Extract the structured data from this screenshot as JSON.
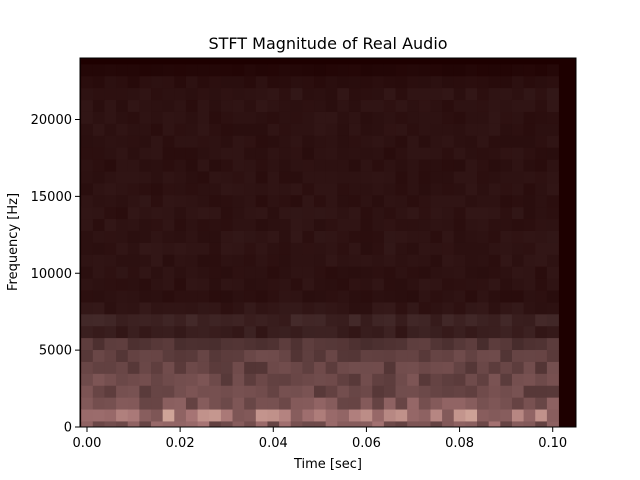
{
  "chart_data": {
    "type": "heatmap",
    "title": "STFT Magnitude of Real Audio",
    "xlabel": "Time [sec]",
    "ylabel": "Frequency [Hz]",
    "xlim": [
      -0.0015,
      0.105
    ],
    "ylim": [
      0,
      24000
    ],
    "xticks": [
      {
        "value": 0.0,
        "label": "0.00"
      },
      {
        "value": 0.02,
        "label": "0.02"
      },
      {
        "value": 0.04,
        "label": "0.04"
      },
      {
        "value": 0.06,
        "label": "0.06"
      },
      {
        "value": 0.08,
        "label": "0.08"
      },
      {
        "value": 0.1,
        "label": "0.10"
      }
    ],
    "yticks": [
      {
        "value": 0,
        "label": "0"
      },
      {
        "value": 5000,
        "label": "5000"
      },
      {
        "value": 10000,
        "label": "10000"
      },
      {
        "value": 15000,
        "label": "15000"
      },
      {
        "value": 20000,
        "label": "20000"
      }
    ],
    "colormap": "pink",
    "background_color": "#1e0000",
    "grid": false,
    "legend": "none",
    "time_frames": {
      "start": 0.0,
      "end": 0.1,
      "count": 41
    },
    "freq_bins": {
      "start": 0,
      "end": 24000,
      "count": 32
    },
    "magnitude_profile": [
      {
        "freq": 0,
        "level": 0.45
      },
      {
        "freq": 375,
        "level": 0.82
      },
      {
        "freq": 750,
        "level": 0.62
      },
      {
        "freq": 1125,
        "level": 0.5
      },
      {
        "freq": 1500,
        "level": 0.4
      },
      {
        "freq": 2250,
        "level": 0.32
      },
      {
        "freq": 3000,
        "level": 0.33
      },
      {
        "freq": 3750,
        "level": 0.3
      },
      {
        "freq": 4500,
        "level": 0.3
      },
      {
        "freq": 5250,
        "level": 0.27
      },
      {
        "freq": 6000,
        "level": 0.1
      },
      {
        "freq": 7000,
        "level": 0.13
      },
      {
        "freq": 8000,
        "level": 0.06
      },
      {
        "freq": 12000,
        "level": 0.07
      },
      {
        "freq": 18000,
        "level": 0.06
      },
      {
        "freq": 22000,
        "level": 0.07
      },
      {
        "freq": 23000,
        "level": 0.03
      },
      {
        "freq": 24000,
        "level": 0.0
      }
    ]
  }
}
